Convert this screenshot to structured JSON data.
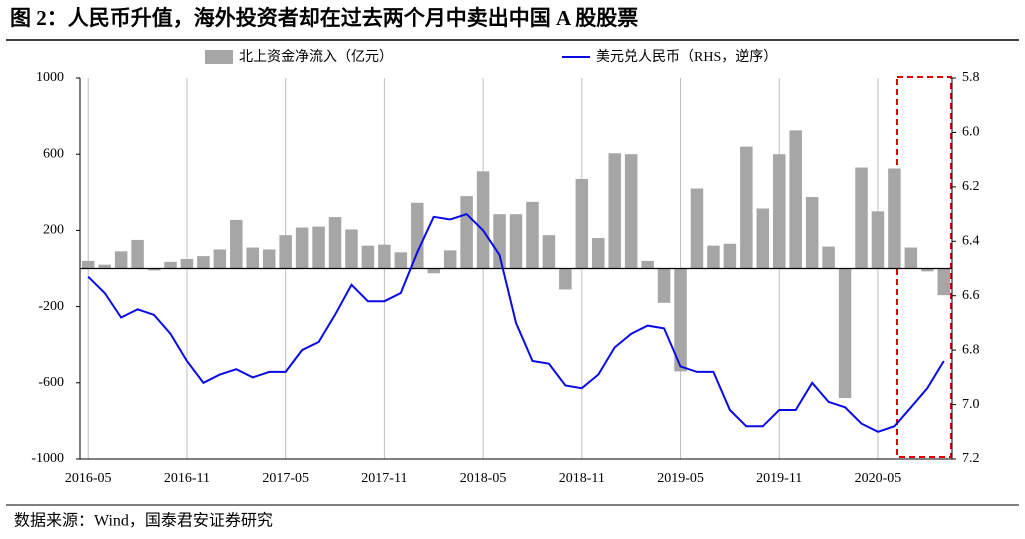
{
  "chart_data": {
    "type": "bar",
    "title": "图 2：人民币升值，海外投资者却在过去两个月中卖出中国 A 股股票",
    "source": "数据来源：Wind，国泰君安证券研究",
    "categories": [
      "2016-05",
      null,
      null,
      null,
      null,
      null,
      "2016-11",
      null,
      null,
      null,
      null,
      null,
      "2017-05",
      null,
      null,
      null,
      null,
      null,
      "2017-11",
      null,
      null,
      null,
      null,
      null,
      "2018-05",
      null,
      null,
      null,
      null,
      null,
      "2018-11",
      null,
      null,
      null,
      null,
      null,
      "2019-05",
      null,
      null,
      null,
      null,
      null,
      "2019-11",
      null,
      null,
      null,
      null,
      null,
      "2020-05",
      null,
      null,
      null,
      null
    ],
    "series": [
      {
        "name": "北上资金净流入（亿元）",
        "type": "bar",
        "color": "#a6a6a6",
        "values": [
          40,
          20,
          90,
          150,
          -10,
          35,
          50,
          65,
          100,
          255,
          110,
          100,
          175,
          215,
          220,
          270,
          205,
          120,
          125,
          85,
          345,
          -25,
          95,
          380,
          510,
          285,
          285,
          350,
          175,
          -110,
          470,
          160,
          605,
          600,
          40,
          -180,
          -540,
          420,
          120,
          130,
          640,
          315,
          600,
          725,
          375,
          115,
          -680,
          530,
          300,
          525,
          110,
          -15,
          -140
        ]
      },
      {
        "name": "美元兑人民币（RHS，逆序）",
        "type": "line",
        "axis": "y2",
        "color": "#0a0ae6",
        "values": [
          6.53,
          6.59,
          6.68,
          6.65,
          6.67,
          6.74,
          6.84,
          6.92,
          6.89,
          6.87,
          6.9,
          6.88,
          6.88,
          6.8,
          6.77,
          6.67,
          6.56,
          6.62,
          6.62,
          6.59,
          6.44,
          6.31,
          6.32,
          6.3,
          6.36,
          6.45,
          6.7,
          6.84,
          6.85,
          6.93,
          6.94,
          6.89,
          6.79,
          6.74,
          6.71,
          6.72,
          6.86,
          6.88,
          6.88,
          7.02,
          7.08,
          7.08,
          7.02,
          7.02,
          6.92,
          6.99,
          7.01,
          7.07,
          7.1,
          7.08,
          7.01,
          6.94,
          6.84
        ]
      }
    ],
    "ylim": [
      -1000,
      1000
    ],
    "yticks": [
      -1000,
      -600,
      -200,
      200,
      600,
      1000
    ],
    "y2lim": [
      5.8,
      7.2
    ],
    "y2_inverted": true,
    "y2ticks": [
      5.8,
      {
        "value": 6,
        "label": "6.0"
      },
      6.2,
      6.4,
      6.6,
      6.8,
      {
        "value": 7,
        "label": "7.0"
      },
      7.2
    ],
    "grid": "x"
  }
}
